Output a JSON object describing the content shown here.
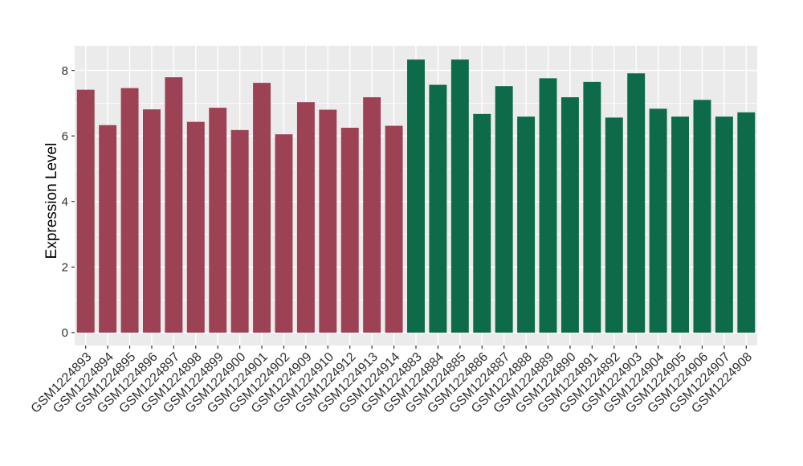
{
  "figure": {
    "background": "#ffffff",
    "panel_background": "#EBEBEB",
    "grid_color": "#FFFFFF",
    "tick_mark_color": "#333333",
    "tick_label_color": "#303030",
    "axis_title_color": "#000000"
  },
  "chart_data": {
    "type": "bar",
    "title": "",
    "xlabel": "",
    "ylabel": "Expression Level",
    "ylim": [
      0,
      8.75
    ],
    "yticks": [
      0,
      2,
      4,
      6,
      8
    ],
    "minor_yticks": [
      1,
      3,
      5,
      7
    ],
    "grid": "major-and-minor-horizontal, major-vertical-per-category",
    "legend_position": "none",
    "x_tick_label_angle": 45,
    "group_colors": [
      "#9C4254",
      "#0D6B4A"
    ],
    "bars": [
      {
        "label": "GSM1224893",
        "value": 7.41,
        "group": 0
      },
      {
        "label": "GSM1224894",
        "value": 6.33,
        "group": 0
      },
      {
        "label": "GSM1224895",
        "value": 7.46,
        "group": 0
      },
      {
        "label": "GSM1224896",
        "value": 6.81,
        "group": 0
      },
      {
        "label": "GSM1224897",
        "value": 7.79,
        "group": 0
      },
      {
        "label": "GSM1224898",
        "value": 6.43,
        "group": 0
      },
      {
        "label": "GSM1224899",
        "value": 6.86,
        "group": 0
      },
      {
        "label": "GSM1224900",
        "value": 6.18,
        "group": 0
      },
      {
        "label": "GSM1224901",
        "value": 7.62,
        "group": 0
      },
      {
        "label": "GSM1224902",
        "value": 6.05,
        "group": 0
      },
      {
        "label": "GSM1224909",
        "value": 7.03,
        "group": 0
      },
      {
        "label": "GSM1224910",
        "value": 6.8,
        "group": 0
      },
      {
        "label": "GSM1224912",
        "value": 6.25,
        "group": 0
      },
      {
        "label": "GSM1224913",
        "value": 7.18,
        "group": 0
      },
      {
        "label": "GSM1224914",
        "value": 6.31,
        "group": 0
      },
      {
        "label": "GSM1224883",
        "value": 8.33,
        "group": 1
      },
      {
        "label": "GSM1224884",
        "value": 7.56,
        "group": 1
      },
      {
        "label": "GSM1224885",
        "value": 8.33,
        "group": 1
      },
      {
        "label": "GSM1224886",
        "value": 6.67,
        "group": 1
      },
      {
        "label": "GSM1224887",
        "value": 7.52,
        "group": 1
      },
      {
        "label": "GSM1224888",
        "value": 6.59,
        "group": 1
      },
      {
        "label": "GSM1224889",
        "value": 7.76,
        "group": 1
      },
      {
        "label": "GSM1224890",
        "value": 7.18,
        "group": 1
      },
      {
        "label": "GSM1224891",
        "value": 7.65,
        "group": 1
      },
      {
        "label": "GSM1224892",
        "value": 6.56,
        "group": 1
      },
      {
        "label": "GSM1224903",
        "value": 7.91,
        "group": 1
      },
      {
        "label": "GSM1224904",
        "value": 6.83,
        "group": 1
      },
      {
        "label": "GSM1224905",
        "value": 6.59,
        "group": 1
      },
      {
        "label": "GSM1224906",
        "value": 7.1,
        "group": 1
      },
      {
        "label": "GSM1224907",
        "value": 6.59,
        "group": 1
      },
      {
        "label": "GSM1224908",
        "value": 6.72,
        "group": 1
      }
    ]
  }
}
